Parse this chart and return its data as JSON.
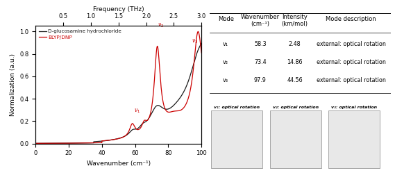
{
  "title_top": "Frequency (THz)",
  "xlabel": "Wavenumber (cm⁻¹)",
  "ylabel": "Normalization (a.u.)",
  "xlim": [
    0,
    100
  ],
  "ylim": [
    0.0,
    1.05
  ],
  "xticks": [
    0,
    20,
    40,
    60,
    80,
    100
  ],
  "top_xticks": [
    0.5,
    1.0,
    1.5,
    2.0,
    2.5,
    3.0
  ],
  "legend_black": "D-glucosamine hydrochloride",
  "legend_red": "BLYP/DNP",
  "color_black": "#1a1a1a",
  "color_red": "#cc0000",
  "table_modes": [
    "v₁",
    "v₂",
    "v₃"
  ],
  "table_wavenumbers": [
    "58.3",
    "73.4",
    "97.9"
  ],
  "table_intensities": [
    "2.48",
    "14.86",
    "44.56"
  ],
  "table_descriptions": [
    "external: optical rotation",
    "external: optical rotation",
    "external: optical rotation"
  ],
  "mol_labels": [
    "v₁: optical rotation",
    "v₂: optical rotation",
    "v₃: optical rotation"
  ]
}
